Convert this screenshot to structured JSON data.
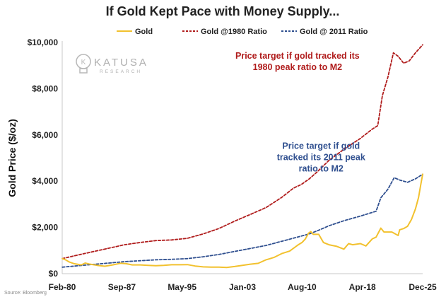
{
  "chart_data": {
    "type": "line",
    "title": "If Gold Kept Pace with Money Supply...",
    "ylabel": "Gold Price ($/oz)",
    "xlabel": "",
    "x_range": [
      1980.08,
      2025.92
    ],
    "ylim": [
      0,
      10000
    ],
    "y_ticks": [
      0,
      2000,
      4000,
      6000,
      8000,
      10000
    ],
    "y_tick_labels": [
      "$0",
      "$2,000",
      "$4,000",
      "$6,000",
      "$8,000",
      "$10,000"
    ],
    "x_ticks": [
      1980.08,
      1987.67,
      1995.33,
      2003.0,
      2010.58,
      2018.25,
      2025.92
    ],
    "x_tick_labels": [
      "Feb-80",
      "Sep-87",
      "May-95",
      "Jan-03",
      "Aug-10",
      "Apr-18",
      "Dec-25"
    ],
    "grid": false,
    "legend_position": "top",
    "series": [
      {
        "name": "Gold",
        "color": "#f2c12e",
        "style": "solid",
        "points": [
          [
            1980.1,
            650
          ],
          [
            1980.5,
            600
          ],
          [
            1981.0,
            500
          ],
          [
            1981.6,
            430
          ],
          [
            1982.5,
            380
          ],
          [
            1983.0,
            460
          ],
          [
            1983.5,
            420
          ],
          [
            1984.5,
            360
          ],
          [
            1985.5,
            320
          ],
          [
            1986.5,
            380
          ],
          [
            1987.5,
            450
          ],
          [
            1988.2,
            430
          ],
          [
            1989.0,
            380
          ],
          [
            1990.0,
            380
          ],
          [
            1991.0,
            360
          ],
          [
            1992.0,
            345
          ],
          [
            1993.0,
            360
          ],
          [
            1994.0,
            385
          ],
          [
            1995.0,
            385
          ],
          [
            1996.0,
            390
          ],
          [
            1997.0,
            330
          ],
          [
            1998.0,
            295
          ],
          [
            1999.0,
            280
          ],
          [
            2000.0,
            280
          ],
          [
            2001.0,
            270
          ],
          [
            2002.0,
            310
          ],
          [
            2003.0,
            360
          ],
          [
            2004.0,
            410
          ],
          [
            2005.0,
            445
          ],
          [
            2006.0,
            600
          ],
          [
            2007.0,
            700
          ],
          [
            2008.0,
            870
          ],
          [
            2009.0,
            975
          ],
          [
            2010.0,
            1225
          ],
          [
            2010.58,
            1350
          ],
          [
            2011.0,
            1500
          ],
          [
            2011.4,
            1750
          ],
          [
            2011.7,
            1820
          ],
          [
            2012.0,
            1700
          ],
          [
            2012.7,
            1700
          ],
          [
            2013.3,
            1350
          ],
          [
            2014.0,
            1250
          ],
          [
            2015.0,
            1180
          ],
          [
            2015.9,
            1060
          ],
          [
            2016.5,
            1300
          ],
          [
            2017.0,
            1250
          ],
          [
            2018.0,
            1300
          ],
          [
            2018.7,
            1200
          ],
          [
            2019.5,
            1500
          ],
          [
            2020.0,
            1580
          ],
          [
            2020.6,
            1970
          ],
          [
            2021.0,
            1800
          ],
          [
            2022.0,
            1800
          ],
          [
            2022.8,
            1650
          ],
          [
            2023.0,
            1900
          ],
          [
            2023.5,
            1950
          ],
          [
            2024.0,
            2050
          ],
          [
            2024.5,
            2350
          ],
          [
            2025.0,
            2800
          ],
          [
            2025.4,
            3300
          ],
          [
            2025.7,
            3900
          ],
          [
            2025.92,
            4300
          ]
        ]
      },
      {
        "name": "Gold @1980 Ratio",
        "color": "#b01c1c",
        "style": "dashed",
        "points": [
          [
            1980.1,
            650
          ],
          [
            1982.0,
            800
          ],
          [
            1984.0,
            950
          ],
          [
            1986.0,
            1100
          ],
          [
            1988.0,
            1250
          ],
          [
            1990.0,
            1350
          ],
          [
            1992.0,
            1430
          ],
          [
            1994.0,
            1460
          ],
          [
            1996.0,
            1530
          ],
          [
            1998.0,
            1720
          ],
          [
            2000.0,
            1950
          ],
          [
            2002.0,
            2270
          ],
          [
            2004.0,
            2560
          ],
          [
            2006.0,
            2860
          ],
          [
            2008.0,
            3300
          ],
          [
            2009.5,
            3700
          ],
          [
            2010.5,
            3860
          ],
          [
            2011.5,
            4100
          ],
          [
            2012.5,
            4400
          ],
          [
            2014.0,
            4900
          ],
          [
            2016.0,
            5400
          ],
          [
            2018.0,
            5850
          ],
          [
            2019.5,
            6250
          ],
          [
            2020.2,
            6400
          ],
          [
            2020.8,
            7700
          ],
          [
            2021.5,
            8500
          ],
          [
            2022.2,
            9550
          ],
          [
            2022.8,
            9400
          ],
          [
            2023.5,
            9100
          ],
          [
            2024.2,
            9200
          ],
          [
            2025.0,
            9550
          ],
          [
            2025.92,
            9900
          ]
        ]
      },
      {
        "name": "Gold @ 2011 Ratio",
        "color": "#2f4f8f",
        "style": "dashed",
        "points": [
          [
            1980.1,
            280
          ],
          [
            1982.0,
            340
          ],
          [
            1984.0,
            400
          ],
          [
            1986.0,
            460
          ],
          [
            1988.0,
            520
          ],
          [
            1990.0,
            560
          ],
          [
            1992.0,
            600
          ],
          [
            1994.0,
            620
          ],
          [
            1996.0,
            650
          ],
          [
            1998.0,
            730
          ],
          [
            2000.0,
            830
          ],
          [
            2002.0,
            960
          ],
          [
            2004.0,
            1090
          ],
          [
            2006.0,
            1220
          ],
          [
            2008.0,
            1400
          ],
          [
            2010.0,
            1580
          ],
          [
            2011.5,
            1720
          ],
          [
            2012.5,
            1850
          ],
          [
            2014.0,
            2070
          ],
          [
            2016.0,
            2300
          ],
          [
            2018.0,
            2490
          ],
          [
            2020.0,
            2700
          ],
          [
            2020.6,
            3280
          ],
          [
            2021.5,
            3650
          ],
          [
            2022.3,
            4150
          ],
          [
            2023.0,
            4050
          ],
          [
            2024.0,
            3950
          ],
          [
            2025.0,
            4100
          ],
          [
            2025.92,
            4300
          ]
        ]
      }
    ],
    "annotations": [
      {
        "lines": [
          "Price target if gold tracked its",
          "1980 peak ratio to M2"
        ],
        "color": "#b01c1c",
        "anchor": [
          2010.0,
          9300
        ]
      },
      {
        "lines": [
          "Price target if gold",
          "tracked its 2011 peak",
          "ratio to M2"
        ],
        "color": "#2f4f8f",
        "anchor": [
          2013.0,
          5400
        ]
      }
    ]
  },
  "logo": {
    "name": "KATUSA",
    "sub": "RESEARCH",
    "icon": "lightbulb-icon"
  },
  "source": "Source: Bloomberg"
}
